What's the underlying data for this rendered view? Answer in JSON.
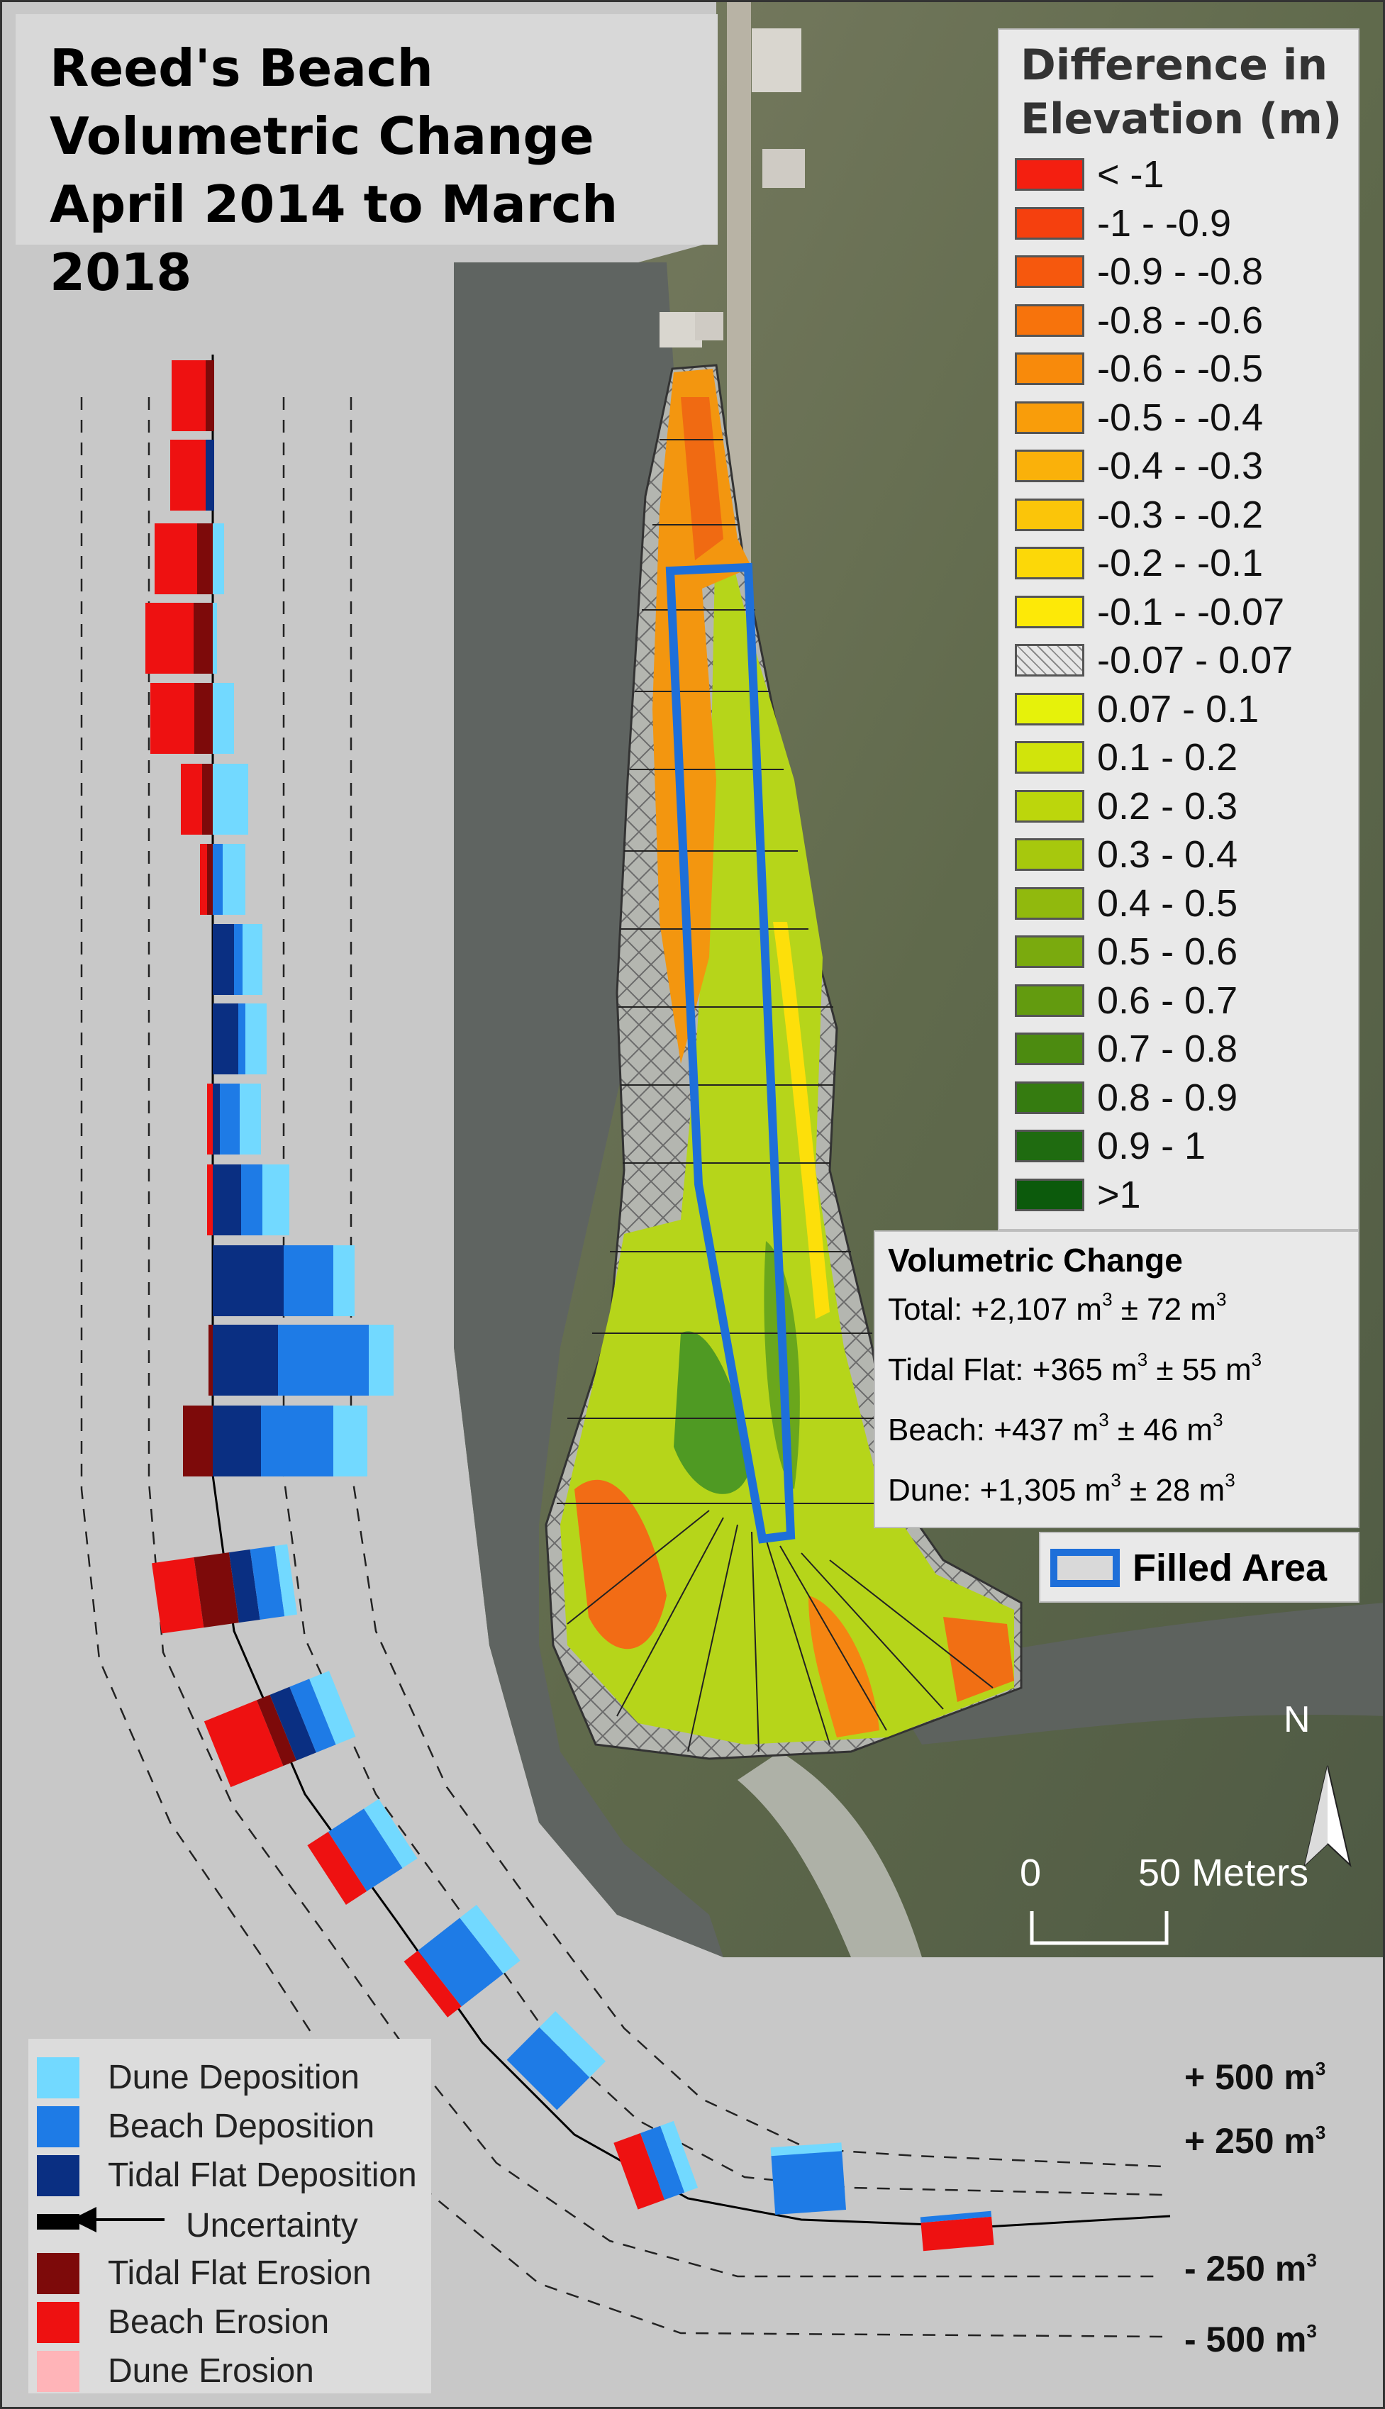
{
  "title": {
    "line1": "Reed's Beach",
    "line2": "Volumetric Change",
    "line3": "April 2014 to March 2018"
  },
  "elevation_legend": {
    "title_line1": "Difference in",
    "title_line2": "Elevation (m)",
    "classes": [
      {
        "label": "< -1",
        "color": "#f41f10"
      },
      {
        "label": "-1 - -0.9",
        "color": "#f5400e"
      },
      {
        "label": "-0.9 - -0.8",
        "color": "#f6580d"
      },
      {
        "label": "-0.8 - -0.6",
        "color": "#f7730c"
      },
      {
        "label": "-0.6 - -0.5",
        "color": "#f88a0b"
      },
      {
        "label": "-0.5 - -0.4",
        "color": "#f99d0a"
      },
      {
        "label": "-0.4 - -0.3",
        "color": "#fab10a"
      },
      {
        "label": "-0.3 - -0.2",
        "color": "#fbc509"
      },
      {
        "label": "-0.2 - -0.1",
        "color": "#fcd808"
      },
      {
        "label": "-0.1 - -0.07",
        "color": "#fde907"
      },
      {
        "label": "-0.07 - 0.07",
        "color": "hatch"
      },
      {
        "label": "0.07 - 0.1",
        "color": "#e6f20a"
      },
      {
        "label": "0.1 - 0.2",
        "color": "#d1e40b"
      },
      {
        "label": "0.2 - 0.3",
        "color": "#bcd60c"
      },
      {
        "label": "0.3 - 0.4",
        "color": "#a7c80d"
      },
      {
        "label": "0.4 - 0.5",
        "color": "#91b90d"
      },
      {
        "label": "0.5 - 0.6",
        "color": "#7aaa0e"
      },
      {
        "label": "0.6 - 0.7",
        "color": "#639b0f"
      },
      {
        "label": "0.7 - 0.8",
        "color": "#4c8b10"
      },
      {
        "label": "0.8 - 0.9",
        "color": "#357b10"
      },
      {
        "label": "0.9 - 1",
        "color": "#1f6b10"
      },
      {
        "label": ">1",
        "color": "#0c5a0c"
      }
    ]
  },
  "volumetric_change": {
    "title": "Volumetric Change",
    "unit": "m",
    "exponent": "3",
    "total_label": "Total: +2,107 m",
    "total_unc": " ± 72 m",
    "tidal_label": "Tidal Flat: +365 m",
    "tidal_unc": " ± 55 m",
    "beach_label": "Beach: +437 m",
    "beach_unc": " ± 46 m",
    "dune_label": "Dune: +1,305 m",
    "dune_unc": " ± 28 m"
  },
  "filled_area": {
    "label": "Filled Area",
    "color": "#1e6fd9"
  },
  "north_arrow": {
    "letter": "N"
  },
  "scale_bar": {
    "start": "0",
    "end": "50 Meters"
  },
  "bar_legend": {
    "items": [
      {
        "label": "Dune Deposition",
        "color": "#72d9ff"
      },
      {
        "label": "Beach Deposition",
        "color": "#1e7be6"
      },
      {
        "label": "Tidal Flat Deposition",
        "color": "#0a2f82"
      },
      {
        "label": "Uncertainty",
        "color": "#000000"
      },
      {
        "label": "Tidal Flat Erosion",
        "color": "#7d0a0a"
      },
      {
        "label": "Beach Erosion",
        "color": "#ee1111"
      },
      {
        "label": "Dune Erosion",
        "color": "#ffb4b8"
      }
    ]
  },
  "reference_lines": {
    "plus500": "+ 500 m",
    "plus250": "+ 250 m",
    "minus250": "- 250 m",
    "minus500": "- 500 m",
    "exponent": "3"
  },
  "colors": {
    "map_gray": "#c8c8c8",
    "water": "#5f6461",
    "outer_border": "#333333"
  }
}
